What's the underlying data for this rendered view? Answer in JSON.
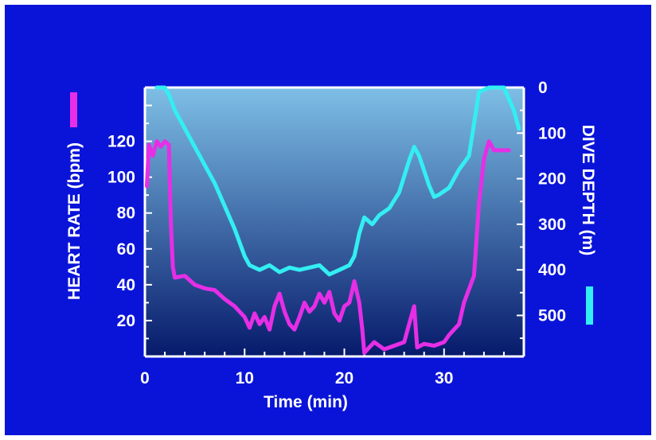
{
  "colors": {
    "background": "#0a14d8",
    "plot_top": "#7ebfe6",
    "plot_bottom": "#061a6b",
    "heart_rate": "#e62ee6",
    "dive_depth": "#33eef2",
    "axis": "#ffffff"
  },
  "chart_data": {
    "type": "line",
    "title": "",
    "xlabel": "Time (min)",
    "ylabel_left": "HEART RATE (bpm)",
    "ylabel_right": "DIVE DEPTH (m)",
    "xlim": [
      0,
      38
    ],
    "ylim_left": [
      0,
      150
    ],
    "ylim_right": [
      0,
      590
    ],
    "right_axis_inverted": true,
    "x_ticks": [
      0,
      10,
      20,
      30
    ],
    "y_left_ticks": [
      20,
      40,
      60,
      80,
      100,
      120
    ],
    "y_right_ticks": [
      0,
      100,
      200,
      300,
      400,
      500
    ],
    "grid": false,
    "legend": "colored bars beside each axis label",
    "series": [
      {
        "axis": "left",
        "points": [
          [
            0.2,
            95
          ],
          [
            0.4,
            118
          ],
          [
            0.8,
            112
          ],
          [
            1.2,
            120
          ],
          [
            1.6,
            117
          ],
          [
            2.0,
            120
          ],
          [
            2.4,
            118
          ],
          [
            2.6,
            75
          ],
          [
            2.8,
            50
          ],
          [
            3.0,
            44
          ],
          [
            4.0,
            45
          ],
          [
            5.0,
            40
          ],
          [
            6.0,
            38
          ],
          [
            7.0,
            37
          ],
          [
            8.0,
            32
          ],
          [
            9.0,
            28
          ],
          [
            10.0,
            22
          ],
          [
            10.5,
            16
          ],
          [
            11.0,
            24
          ],
          [
            11.5,
            18
          ],
          [
            12.0,
            22
          ],
          [
            12.5,
            15
          ],
          [
            13.0,
            28
          ],
          [
            13.5,
            35
          ],
          [
            14.0,
            25
          ],
          [
            14.5,
            18
          ],
          [
            15.0,
            15
          ],
          [
            15.5,
            22
          ],
          [
            16.0,
            30
          ],
          [
            16.5,
            25
          ],
          [
            17.0,
            28
          ],
          [
            17.5,
            35
          ],
          [
            18.0,
            30
          ],
          [
            18.5,
            36
          ],
          [
            19.0,
            24
          ],
          [
            19.5,
            20
          ],
          [
            20.0,
            28
          ],
          [
            20.5,
            30
          ],
          [
            21.0,
            42
          ],
          [
            21.5,
            30
          ],
          [
            21.8,
            15
          ],
          [
            22.0,
            2
          ],
          [
            22.5,
            5
          ],
          [
            23.0,
            8
          ],
          [
            24.0,
            4
          ],
          [
            25.0,
            6
          ],
          [
            26.0,
            8
          ],
          [
            26.5,
            18
          ],
          [
            27.0,
            28
          ],
          [
            27.3,
            5
          ],
          [
            28.0,
            7
          ],
          [
            29.0,
            6
          ],
          [
            30.0,
            8
          ],
          [
            30.5,
            12
          ],
          [
            31.0,
            15
          ],
          [
            31.5,
            18
          ],
          [
            32.0,
            30
          ],
          [
            33.0,
            45
          ],
          [
            33.5,
            85
          ],
          [
            34.0,
            110
          ],
          [
            34.5,
            120
          ],
          [
            35.0,
            115
          ],
          [
            36.5,
            115
          ]
        ]
      },
      {
        "axis": "right",
        "points": [
          [
            1.2,
            0
          ],
          [
            2.0,
            0
          ],
          [
            2.5,
            20
          ],
          [
            3.0,
            50
          ],
          [
            5.0,
            130
          ],
          [
            7.0,
            210
          ],
          [
            9.0,
            310
          ],
          [
            10.0,
            370
          ],
          [
            10.5,
            390
          ],
          [
            11.5,
            400
          ],
          [
            12.5,
            390
          ],
          [
            13.5,
            405
          ],
          [
            14.5,
            395
          ],
          [
            15.5,
            400
          ],
          [
            16.5,
            395
          ],
          [
            17.5,
            390
          ],
          [
            18.5,
            410
          ],
          [
            19.5,
            400
          ],
          [
            20.5,
            390
          ],
          [
            21.0,
            370
          ],
          [
            21.5,
            320
          ],
          [
            22.0,
            285
          ],
          [
            22.8,
            300
          ],
          [
            23.5,
            280
          ],
          [
            24.5,
            265
          ],
          [
            25.5,
            230
          ],
          [
            26.5,
            160
          ],
          [
            27.0,
            130
          ],
          [
            27.5,
            150
          ],
          [
            28.5,
            215
          ],
          [
            29.0,
            240
          ],
          [
            29.5,
            235
          ],
          [
            30.5,
            220
          ],
          [
            31.5,
            180
          ],
          [
            32.5,
            150
          ],
          [
            33.0,
            80
          ],
          [
            33.5,
            10
          ],
          [
            34.5,
            0
          ],
          [
            36.0,
            0
          ],
          [
            37.0,
            50
          ],
          [
            37.5,
            90
          ]
        ]
      }
    ]
  }
}
